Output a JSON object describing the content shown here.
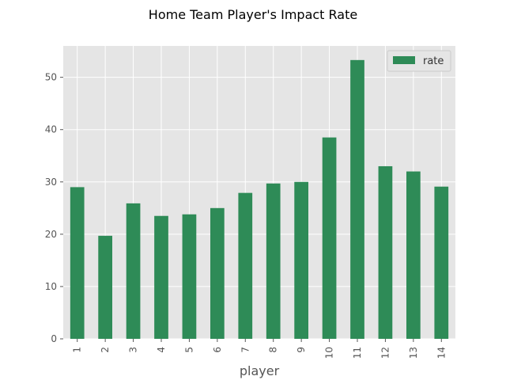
{
  "chart_data": {
    "type": "bar",
    "title": "Home Team Player's Impact Rate",
    "xlabel": "player",
    "ylabel": "",
    "categories": [
      "1",
      "2",
      "3",
      "4",
      "5",
      "6",
      "7",
      "8",
      "9",
      "10",
      "11",
      "12",
      "13",
      "14"
    ],
    "series": [
      {
        "name": "rate",
        "color": "#2e8b57",
        "values": [
          29.0,
          19.7,
          25.9,
          23.5,
          23.8,
          25.0,
          27.9,
          29.7,
          30.0,
          38.5,
          53.3,
          33.0,
          32.0,
          29.1
        ]
      }
    ],
    "ylim": [
      0,
      56
    ],
    "yticks": [
      0,
      10,
      20,
      30,
      40,
      50
    ],
    "grid": true,
    "legend": "top-right",
    "colors": {
      "background": "#e5e5e5",
      "grid": "#ffffff",
      "tick_text": "#555555"
    }
  }
}
